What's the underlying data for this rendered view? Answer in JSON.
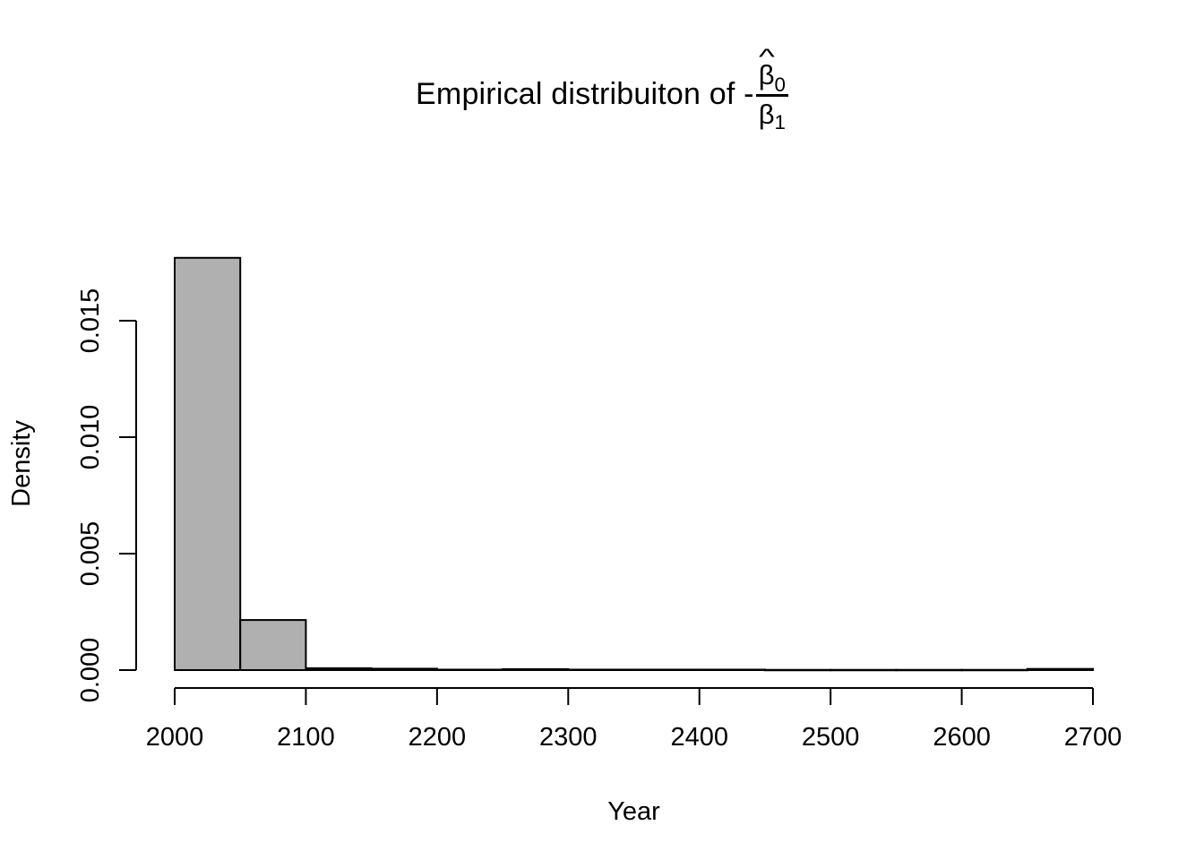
{
  "figure": {
    "background_color": "#ffffff",
    "title": {
      "prefix": "Empirical distribuiton of -",
      "fraction": {
        "hat": "^",
        "numerator_symbol": "β",
        "numerator_subscript": "0",
        "denominator_symbol": "β",
        "denominator_subscript": "1"
      }
    }
  },
  "chart_data": {
    "type": "bar",
    "chart_kind": "histogram",
    "title": "Empirical distribuiton of -β̂0/β1",
    "xlabel": "Year",
    "ylabel": "Density",
    "bin_width": 50,
    "breaks": [
      2000,
      2050,
      2100,
      2150,
      2200,
      2250,
      2300,
      2350,
      2400,
      2450,
      2500,
      2550,
      2600,
      2650,
      2700
    ],
    "densities": [
      0.0177,
      0.00215,
      8e-05,
      6e-05,
      2e-05,
      4e-05,
      2e-05,
      2e-05,
      2e-05,
      1e-05,
      1e-05,
      1e-05,
      1e-05,
      5e-05
    ],
    "x_ticks": [
      2000,
      2100,
      2200,
      2300,
      2400,
      2500,
      2600,
      2700
    ],
    "y_tick_labels": [
      "0.000",
      "0.005",
      "0.010",
      "0.015"
    ],
    "y_tick_values": [
      0,
      0.005,
      0.01,
      0.015
    ],
    "xlim": [
      2000,
      2700
    ],
    "ylim": [
      0,
      0.0177
    ],
    "grid": false,
    "legend": null,
    "bar_fill": "#b0b0b0",
    "bar_stroke": "#000000",
    "axis_color": "#000000"
  }
}
